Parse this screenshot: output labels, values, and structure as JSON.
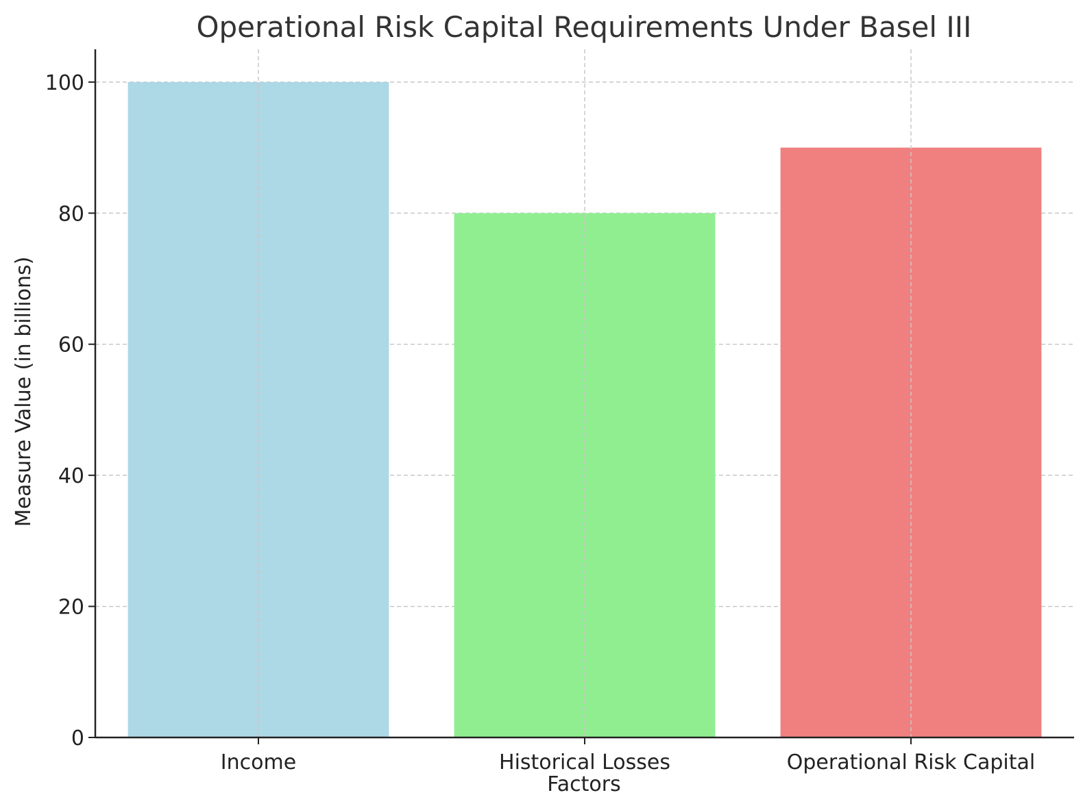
{
  "chart_data": {
    "type": "bar",
    "title": "Operational Risk Capital Requirements Under Basel III",
    "xlabel": "Factors",
    "ylabel": "Measure Value (in billions)",
    "categories": [
      "Income",
      "Historical Losses",
      "Operational Risk Capital"
    ],
    "values": [
      100,
      80,
      90
    ],
    "colors": [
      "#add8e6",
      "#90ee90",
      "#f08080"
    ],
    "ylim": [
      0,
      105
    ],
    "yticks": [
      0,
      20,
      40,
      60,
      80,
      100
    ],
    "grid": true
  }
}
